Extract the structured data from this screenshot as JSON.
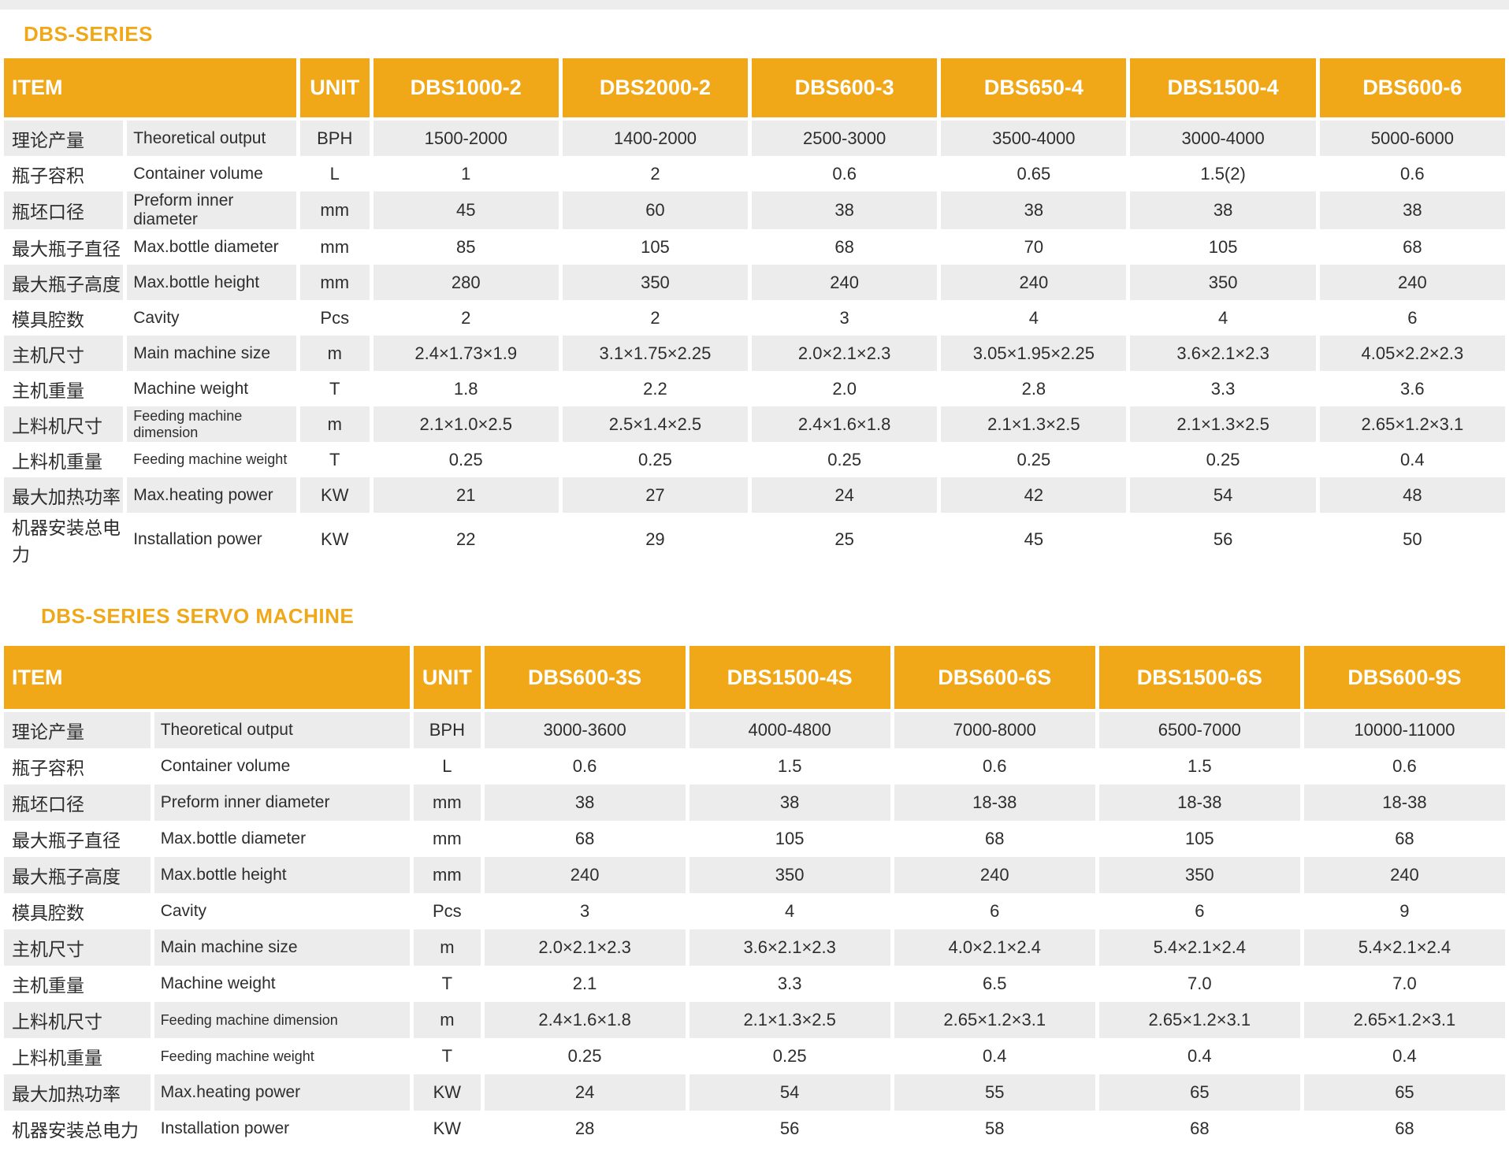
{
  "page": {
    "accent_color": "#f0a818",
    "row_stripe_color": "#ececec",
    "text_color": "#2d2d2d"
  },
  "tables": [
    {
      "title": "DBS-SERIES",
      "item_header": "ITEM",
      "unit_header": "UNIT",
      "models": [
        "DBS1000-2",
        "DBS2000-2",
        "DBS600-3",
        "DBS650-4",
        "DBS1500-4",
        "DBS600-6"
      ],
      "rows": [
        {
          "cn": "理论产量",
          "en": "Theoretical output",
          "unit": "BPH",
          "small": false,
          "values": [
            "1500-2000",
            "1400-2000",
            "2500-3000",
            "3500-4000",
            "3000-4000",
            "5000-6000"
          ]
        },
        {
          "cn": "瓶子容积",
          "en": "Container volume",
          "unit": "L",
          "small": false,
          "values": [
            "1",
            "2",
            "0.6",
            "0.65",
            "1.5(2)",
            "0.6"
          ]
        },
        {
          "cn": "瓶坯口径",
          "en": "Preform inner diameter",
          "unit": "mm",
          "small": false,
          "values": [
            "45",
            "60",
            "38",
            "38",
            "38",
            "38"
          ]
        },
        {
          "cn": "最大瓶子直径",
          "en": "Max.bottle diameter",
          "unit": "mm",
          "small": false,
          "values": [
            "85",
            "105",
            "68",
            "70",
            "105",
            "68"
          ]
        },
        {
          "cn": "最大瓶子高度",
          "en": "Max.bottle height",
          "unit": "mm",
          "small": false,
          "values": [
            "280",
            "350",
            "240",
            "240",
            "350",
            "240"
          ]
        },
        {
          "cn": "模具腔数",
          "en": "Cavity",
          "unit": "Pcs",
          "small": false,
          "values": [
            "2",
            "2",
            "3",
            "4",
            "4",
            "6"
          ]
        },
        {
          "cn": "主机尺寸",
          "en": "Main machine size",
          "unit": "m",
          "small": false,
          "values": [
            "2.4×1.73×1.9",
            "3.1×1.75×2.25",
            "2.0×2.1×2.3",
            "3.05×1.95×2.25",
            "3.6×2.1×2.3",
            "4.05×2.2×2.3"
          ]
        },
        {
          "cn": "主机重量",
          "en": "Machine weight",
          "unit": "T",
          "small": false,
          "values": [
            "1.8",
            "2.2",
            "2.0",
            "2.8",
            "3.3",
            "3.6"
          ]
        },
        {
          "cn": "上料机尺寸",
          "en": "Feeding machine dimension",
          "unit": "m",
          "small": true,
          "values": [
            "2.1×1.0×2.5",
            "2.5×1.4×2.5",
            "2.4×1.6×1.8",
            "2.1×1.3×2.5",
            "2.1×1.3×2.5",
            "2.65×1.2×3.1"
          ]
        },
        {
          "cn": "上料机重量",
          "en": "Feeding machine weight",
          "unit": "T",
          "small": true,
          "values": [
            "0.25",
            "0.25",
            "0.25",
            "0.25",
            "0.25",
            "0.4"
          ]
        },
        {
          "cn": "最大加热功率",
          "en": "Max.heating power",
          "unit": "KW",
          "small": false,
          "values": [
            "21",
            "27",
            "24",
            "42",
            "54",
            "48"
          ]
        },
        {
          "cn": "机器安装总电力",
          "en": "Installation power",
          "unit": "KW",
          "small": false,
          "values": [
            "22",
            "29",
            "25",
            "45",
            "56",
            "50"
          ]
        }
      ]
    },
    {
      "title": "DBS-SERIES SERVO MACHINE",
      "item_header": "ITEM",
      "unit_header": "UNIT",
      "models": [
        "DBS600-3S",
        "DBS1500-4S",
        "DBS600-6S",
        "DBS1500-6S",
        "DBS600-9S"
      ],
      "rows": [
        {
          "cn": "理论产量",
          "en": "Theoretical output",
          "unit": "BPH",
          "small": false,
          "values": [
            "3000-3600",
            "4000-4800",
            "7000-8000",
            "6500-7000",
            "10000-11000"
          ]
        },
        {
          "cn": "瓶子容积",
          "en": "Container volume",
          "unit": "L",
          "small": false,
          "values": [
            "0.6",
            "1.5",
            "0.6",
            "1.5",
            "0.6"
          ]
        },
        {
          "cn": "瓶坯口径",
          "en": "Preform inner diameter",
          "unit": "mm",
          "small": false,
          "values": [
            "38",
            "38",
            "18-38",
            "18-38",
            "18-38"
          ]
        },
        {
          "cn": "最大瓶子直径",
          "en": "Max.bottle diameter",
          "unit": "mm",
          "small": false,
          "values": [
            "68",
            "105",
            "68",
            "105",
            "68"
          ]
        },
        {
          "cn": "最大瓶子高度",
          "en": "Max.bottle height",
          "unit": "mm",
          "small": false,
          "values": [
            "240",
            "350",
            "240",
            "350",
            "240"
          ]
        },
        {
          "cn": "模具腔数",
          "en": "Cavity",
          "unit": "Pcs",
          "small": false,
          "values": [
            "3",
            "4",
            "6",
            "6",
            "9"
          ]
        },
        {
          "cn": "主机尺寸",
          "en": "Main machine size",
          "unit": "m",
          "small": false,
          "values": [
            "2.0×2.1×2.3",
            "3.6×2.1×2.3",
            "4.0×2.1×2.4",
            "5.4×2.1×2.4",
            "5.4×2.1×2.4"
          ]
        },
        {
          "cn": "主机重量",
          "en": "Machine weight",
          "unit": "T",
          "small": false,
          "values": [
            "2.1",
            "3.3",
            "6.5",
            "7.0",
            "7.0"
          ]
        },
        {
          "cn": "上料机尺寸",
          "en": "Feeding machine dimension",
          "unit": "m",
          "small": true,
          "values": [
            "2.4×1.6×1.8",
            "2.1×1.3×2.5",
            "2.65×1.2×3.1",
            "2.65×1.2×3.1",
            "2.65×1.2×3.1"
          ]
        },
        {
          "cn": "上料机重量",
          "en": "Feeding machine weight",
          "unit": "T",
          "small": true,
          "values": [
            "0.25",
            "0.25",
            "0.4",
            "0.4",
            "0.4"
          ]
        },
        {
          "cn": "最大加热功率",
          "en": "Max.heating power",
          "unit": "KW",
          "small": false,
          "values": [
            "24",
            "54",
            "55",
            "65",
            "65"
          ]
        },
        {
          "cn": "机器安装总电力",
          "en": "Installation power",
          "unit": "KW",
          "small": false,
          "values": [
            "28",
            "56",
            "58",
            "68",
            "68"
          ]
        }
      ]
    }
  ]
}
